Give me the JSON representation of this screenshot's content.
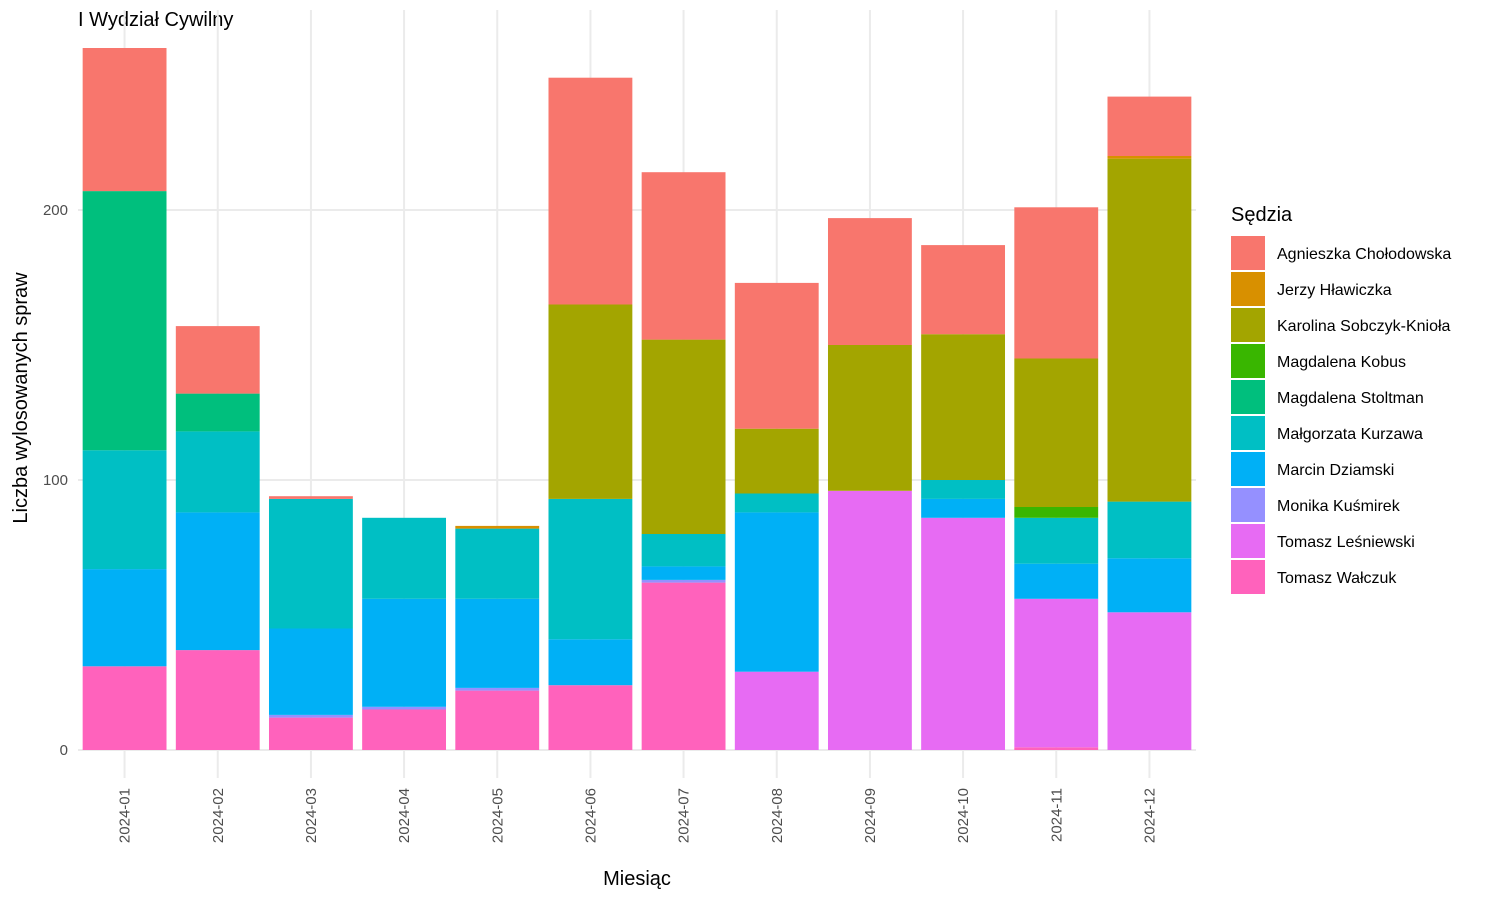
{
  "chart_data": {
    "type": "bar",
    "stacked": true,
    "title": "I Wydział Cywilny",
    "xlabel": "Miesiąc",
    "ylabel": "Liczba wylosowanych spraw",
    "ylim": [
      0,
      260
    ],
    "y_ticks": [
      0,
      100,
      200
    ],
    "grid": true,
    "legend_position": "right",
    "legend_title": "Sędzia",
    "categories": [
      "2024-01",
      "2024-02",
      "2024-03",
      "2024-04",
      "2024-05",
      "2024-06",
      "2024-07",
      "2024-08",
      "2024-09",
      "2024-10",
      "2024-11",
      "2024-12"
    ],
    "stack_order_bottom_to_top": [
      "Tomasz Wałczuk",
      "Tomasz Leśniewski",
      "Monika Kuśmirek",
      "Marcin Dziamski",
      "Małgorzata Kurzawa",
      "Magdalena Stoltman",
      "Magdalena Kobus",
      "Karolina Sobczyk-Knioła",
      "Jerzy Hławiczka",
      "Agnieszka Chołodowska"
    ],
    "series": [
      {
        "name": "Agnieszka Chołodowska",
        "color": "#F8766D",
        "values": [
          53,
          25,
          1,
          0,
          0,
          84,
          62,
          54,
          47,
          33,
          56,
          22
        ]
      },
      {
        "name": "Jerzy Hławiczka",
        "color": "#D89000",
        "values": [
          0,
          0,
          0,
          0,
          1,
          0,
          0,
          0,
          0,
          0,
          0,
          1
        ]
      },
      {
        "name": "Karolina Sobczyk-Knioła",
        "color": "#A3A500",
        "values": [
          0,
          0,
          0,
          0,
          0,
          72,
          72,
          24,
          54,
          54,
          55,
          127
        ]
      },
      {
        "name": "Magdalena Kobus",
        "color": "#39B600",
        "values": [
          0,
          0,
          0,
          0,
          0,
          0,
          0,
          0,
          0,
          0,
          4,
          0
        ]
      },
      {
        "name": "Magdalena Stoltman",
        "color": "#00BF7D",
        "values": [
          96,
          14,
          0,
          0,
          0,
          0,
          0,
          0,
          0,
          0,
          0,
          0
        ]
      },
      {
        "name": "Małgorzata Kurzawa",
        "color": "#00BFC4",
        "values": [
          44,
          30,
          48,
          30,
          26,
          52,
          12,
          7,
          0,
          7,
          17,
          21
        ]
      },
      {
        "name": "Marcin Dziamski",
        "color": "#00B0F6",
        "values": [
          36,
          51,
          32,
          40,
          33,
          17,
          5,
          59,
          0,
          7,
          13,
          20
        ]
      },
      {
        "name": "Monika Kuśmirek",
        "color": "#9590FF",
        "values": [
          0,
          0,
          1,
          1,
          1,
          0,
          1,
          0,
          0,
          0,
          0,
          0
        ]
      },
      {
        "name": "Tomasz Leśniewski",
        "color": "#E76BF3",
        "values": [
          0,
          0,
          0,
          0,
          0,
          0,
          0,
          29,
          96,
          86,
          55,
          51
        ]
      },
      {
        "name": "Tomasz Wałczuk",
        "color": "#FF62BC",
        "values": [
          31,
          37,
          12,
          15,
          22,
          24,
          62,
          0,
          0,
          0,
          1,
          0
        ]
      }
    ]
  }
}
